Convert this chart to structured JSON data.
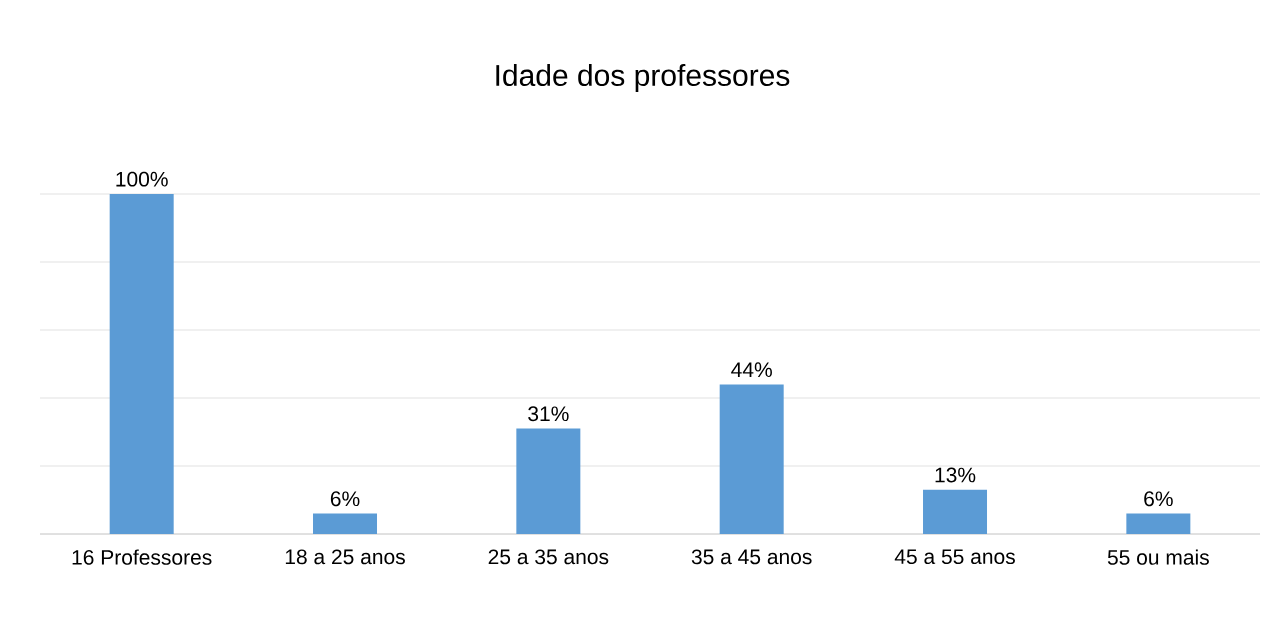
{
  "chart_data": {
    "type": "bar",
    "title": "Idade dos professores",
    "categories": [
      "16 Professores",
      "18 a 25 anos",
      "25 a 35 anos",
      "35 a 45 anos",
      "45 a 55 anos",
      "55 ou mais"
    ],
    "values": [
      100,
      6,
      31,
      44,
      13,
      6
    ],
    "value_labels": [
      "100%",
      "6%",
      "31%",
      "44%",
      "13%",
      "6%"
    ],
    "color": "#5b9bd5",
    "ylim": [
      0,
      100
    ],
    "yticks": [
      {
        "value": 0,
        "label": null
      },
      {
        "value": 20,
        "label": null
      },
      {
        "value": 40,
        "label": null
      },
      {
        "value": 60,
        "label": null
      },
      {
        "value": 80,
        "label": null
      },
      {
        "value": 100,
        "label": null
      }
    ],
    "tick_labels": "x",
    "grid": "y"
  }
}
